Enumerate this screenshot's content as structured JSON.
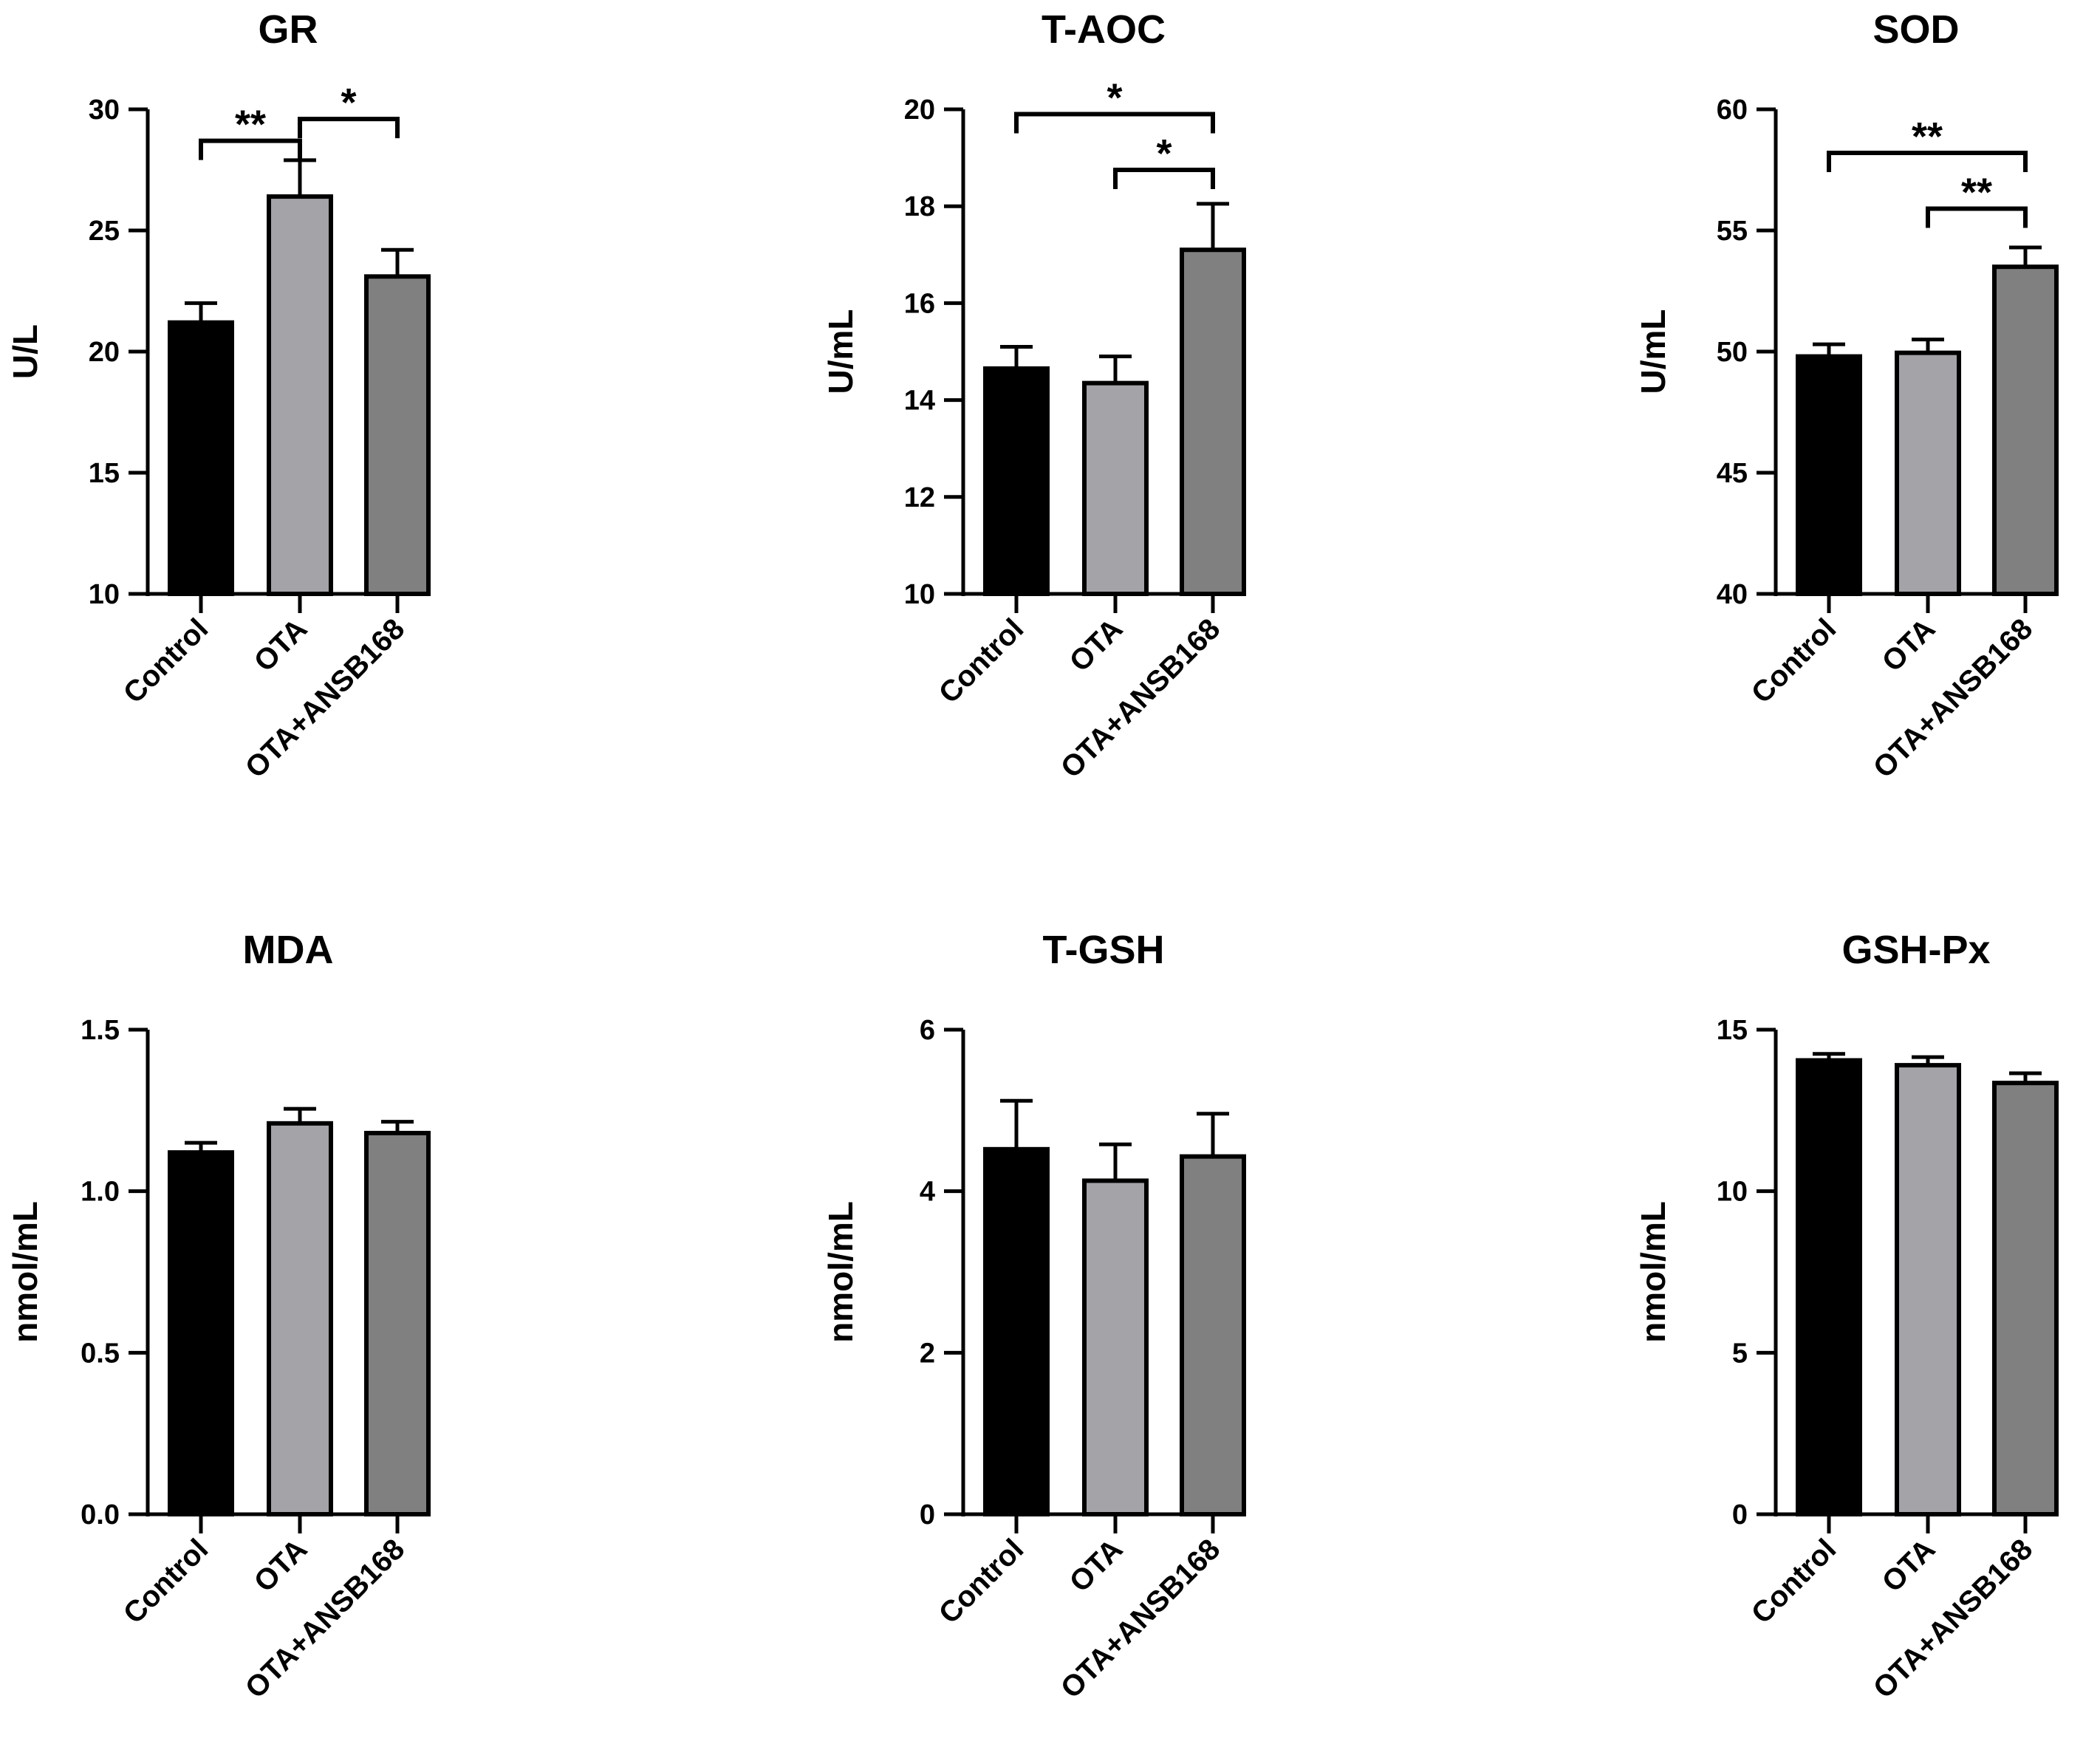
{
  "colors": {
    "control": "#000000",
    "ota": "#a3a3a8",
    "ota_ansb168": "#808080",
    "axis": "#000000"
  },
  "chart_data": [
    {
      "type": "bar",
      "title": "GR",
      "ylabel": "U/L",
      "categories": [
        "Control",
        "OTA",
        "OTA+ANSB168"
      ],
      "values": [
        21.2,
        26.4,
        23.1
      ],
      "errors": [
        0.8,
        1.5,
        1.1
      ],
      "ylim": [
        10,
        30
      ],
      "yticks": [
        "10",
        "15",
        "20",
        "25",
        "30"
      ],
      "significance": [
        {
          "from": 0,
          "to": 1,
          "label": "**",
          "level": 28.7
        },
        {
          "from": 1,
          "to": 2,
          "label": "*",
          "level": 29.6
        }
      ]
    },
    {
      "type": "bar",
      "title": "T-AOC",
      "ylabel": "U/mL",
      "categories": [
        "Control",
        "OTA",
        "OTA+ANSB168"
      ],
      "values": [
        14.65,
        14.35,
        17.1
      ],
      "errors": [
        0.45,
        0.55,
        0.95
      ],
      "ylim": [
        10,
        20
      ],
      "yticks": [
        "10",
        "12",
        "14",
        "16",
        "18",
        "20"
      ],
      "significance": [
        {
          "from": 0,
          "to": 2,
          "label": "*",
          "level": 19.9
        },
        {
          "from": 1,
          "to": 2,
          "label": "*",
          "level": 18.75
        }
      ]
    },
    {
      "type": "bar",
      "title": "SOD",
      "ylabel": "U/mL",
      "categories": [
        "Control",
        "OTA",
        "OTA+ANSB168"
      ],
      "values": [
        49.8,
        49.95,
        53.5
      ],
      "errors": [
        0.5,
        0.55,
        0.8
      ],
      "ylim": [
        40,
        60
      ],
      "yticks": [
        "40",
        "45",
        "50",
        "55",
        "60"
      ],
      "significance": [
        {
          "from": 0,
          "to": 2,
          "label": "**",
          "level": 58.2
        },
        {
          "from": 1,
          "to": 2,
          "label": "**",
          "level": 55.9
        }
      ]
    },
    {
      "type": "bar",
      "title": "MDA",
      "ylabel": "nmol/mL",
      "categories": [
        "Control",
        "OTA",
        "OTA+ANSB168"
      ],
      "values": [
        1.12,
        1.21,
        1.18
      ],
      "errors": [
        0.03,
        0.045,
        0.035
      ],
      "ylim": [
        0,
        1.5
      ],
      "yticks": [
        "0.0",
        "0.5",
        "1.0",
        "1.5"
      ],
      "significance": []
    },
    {
      "type": "bar",
      "title": "T-GSH",
      "ylabel": "nmol/mL",
      "categories": [
        "Control",
        "OTA",
        "OTA+ANSB168"
      ],
      "values": [
        4.52,
        4.13,
        4.43
      ],
      "errors": [
        0.6,
        0.45,
        0.53
      ],
      "ylim": [
        0,
        6
      ],
      "yticks": [
        "0",
        "2",
        "4",
        "6"
      ],
      "significance": []
    },
    {
      "type": "bar",
      "title": "GSH-Px",
      "ylabel": "nmol/mL",
      "categories": [
        "Control",
        "OTA",
        "OTA+ANSB168"
      ],
      "values": [
        14.05,
        13.9,
        13.35
      ],
      "errors": [
        0.2,
        0.25,
        0.3
      ],
      "ylim": [
        0,
        15
      ],
      "yticks": [
        "0",
        "5",
        "10",
        "15"
      ],
      "significance": []
    }
  ]
}
